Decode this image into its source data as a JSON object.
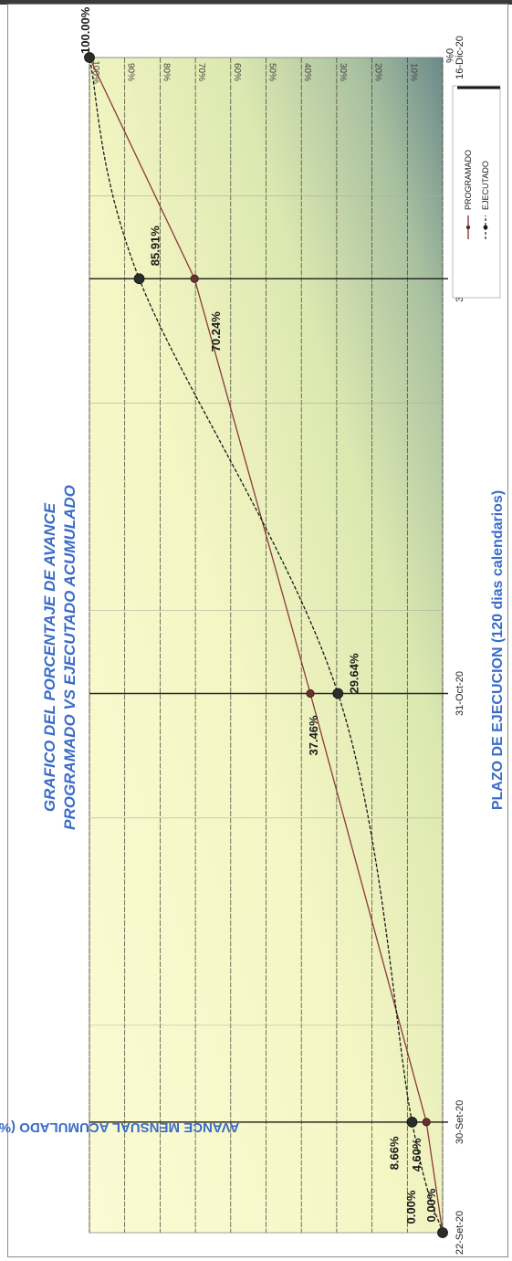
{
  "chart_data": {
    "type": "line",
    "title_line1": "GRAFICO DEL PORCENTAJE DE AVANCE",
    "title_line2": "PROGRAMADO VS EJECUTADO ACUMULADO",
    "xlabel": "PLAZO DE EJECUCION (120 dias calendarios)",
    "ylabel": "AVANCE MENSUAL ACUMULADO (%)",
    "x_ticks": [
      "22-Set-20",
      "30-Set-20",
      "31-Oct-20",
      "30-Nov-20",
      "16-Dic-20"
    ],
    "y_ticks": [
      "0%",
      "10%",
      "20%",
      "30%",
      "40%",
      "50%",
      "60%",
      "70%",
      "80%",
      "90%",
      "100%"
    ],
    "ylim": [
      0,
      100
    ],
    "grid": true,
    "legend_position": "right",
    "series": [
      {
        "name": "PROGRAMADO",
        "color": "#8b3a3a",
        "style": "solid",
        "points": [
          {
            "x": "22-Set-20",
            "y": 0.0,
            "label": "0.00%"
          },
          {
            "x": "30-Set-20",
            "y": 4.6,
            "label": "4.60%"
          },
          {
            "x": "31-Oct-20",
            "y": 37.46,
            "label": "37.46%"
          },
          {
            "x": "30-Nov-20",
            "y": 70.24,
            "label": "70.24%"
          },
          {
            "x": "16-Dic-20",
            "y": 100.0,
            "label": "100.00%"
          }
        ]
      },
      {
        "name": "EJECUTADO",
        "color": "#1a1a1a",
        "style": "dashed",
        "points": [
          {
            "x": "22-Set-20",
            "y": 0.0,
            "label": "0.00%"
          },
          {
            "x": "30-Set-20",
            "y": 8.66,
            "label": "8.66%"
          },
          {
            "x": "31-Oct-20",
            "y": 29.64,
            "label": "29.64%"
          },
          {
            "x": "30-Nov-20",
            "y": 85.91,
            "label": "85.91%"
          },
          {
            "x": "16-Dic-20",
            "y": 100.0,
            "label": "100.00%"
          }
        ]
      }
    ]
  },
  "colors": {
    "title": "#3a6cc8",
    "plot_bg_light": "#fbfbd2",
    "plot_bg_dark": "#6f8f8c"
  }
}
